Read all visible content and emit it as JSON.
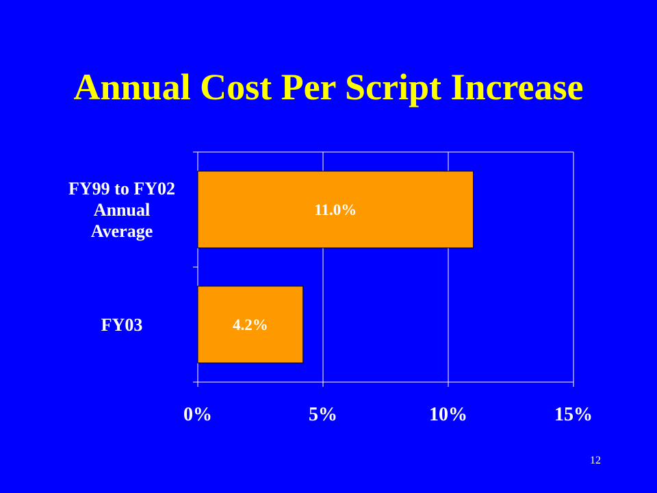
{
  "slide": {
    "title": "Annual Cost Per Script Increase",
    "page_number": "12"
  },
  "colors": {
    "background": "#0000FF",
    "title": "#FFFF00",
    "bar": "#FF9900",
    "text": "#FFFFFF",
    "grid": "#FFFFFF",
    "bar_label": "#FFFFFF"
  },
  "chart_data": {
    "type": "bar",
    "orientation": "horizontal",
    "categories": [
      [
        "FY99 to FY02",
        "Annual",
        "Average"
      ],
      [
        "FY03"
      ]
    ],
    "values": [
      11.0,
      4.2
    ],
    "data_labels": [
      "11.0%",
      "4.2%"
    ],
    "xlim": [
      0,
      15
    ],
    "xticks": [
      0,
      5,
      10,
      15
    ],
    "xtick_labels": [
      "0%",
      "5%",
      "10%",
      "15%"
    ],
    "grid": true,
    "legend": false
  }
}
